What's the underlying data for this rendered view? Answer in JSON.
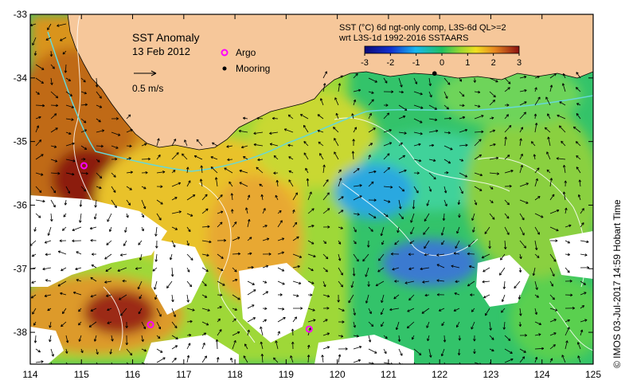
{
  "map": {
    "title": "SST Anomaly",
    "date": "13 Feb 2012",
    "scale_label": "0.5 m/s",
    "legend": {
      "argo": "Argo",
      "mooring": "Mooring"
    },
    "colorbar": {
      "title_line1": "SST (°C) 6d ngt-only comp, L3S-6d QL>=2",
      "title_line2": "wrt L3S-1d 1992-2016 SSTAARS",
      "ticks": [
        "-3",
        "-2",
        "-1",
        "0",
        "1",
        "2",
        "3"
      ],
      "range": [
        -3,
        3
      ]
    },
    "credit": "© IMOS 03-Jul-2017 14:59 Hobart Time",
    "x_ticks": [
      "114",
      "115",
      "116",
      "117",
      "118",
      "119",
      "120",
      "121",
      "122",
      "123",
      "124",
      "125"
    ],
    "y_ticks": [
      "-33",
      "-34",
      "-35",
      "-36",
      "-37",
      "-38"
    ],
    "lon_range": [
      114,
      125
    ],
    "lat_range": [
      -38.5,
      -33
    ],
    "argo_floats": [
      {
        "lon": 115.05,
        "lat": -35.38
      },
      {
        "lon": 116.35,
        "lat": -37.88
      },
      {
        "lon": 119.45,
        "lat": -37.95
      }
    ],
    "mooring": {
      "lon": 121.9,
      "lat": -33.93
    },
    "colors": {
      "land": "#f6c79a",
      "no_data": "#ffffff",
      "current_arrow": "#000000",
      "argo": "#ff00ff",
      "contour": "#ffffff",
      "current_path": "#66d8d8"
    }
  }
}
